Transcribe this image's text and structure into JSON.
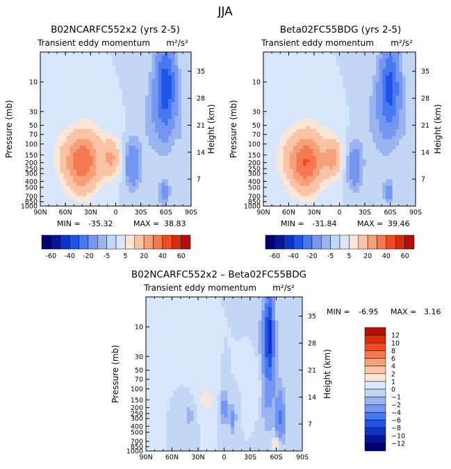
{
  "figure": {
    "title": "JJA"
  },
  "chart_data": [
    {
      "type": "heatmap",
      "title": "B02NCARFC552x2 (yrs 2-5)",
      "subtitle": "Transient eddy momentum",
      "units": "m²/s²",
      "xlabel": "",
      "ylabel": "Pressure (mb)",
      "ylabel_right": "Height (km)",
      "x_ticks": [
        "90N",
        "60N",
        "30N",
        "0",
        "30S",
        "60S",
        "90S"
      ],
      "y_ticks": [
        "10",
        "30",
        "50",
        "70",
        "100",
        "150",
        "200",
        "250",
        "300",
        "400",
        "500",
        "700",
        "850",
        "1000"
      ],
      "y_ticks_right": [
        "35",
        "28",
        "21",
        "14",
        "7"
      ],
      "y_scale": "log",
      "stats": {
        "min_label": "MIN =",
        "min_value": "-35.32",
        "max_label": "MAX =",
        "max_value": "38.83"
      },
      "blobs": [
        {
          "lat": 40,
          "p": 200,
          "w": 20,
          "h": 0.45,
          "v": 38.8
        },
        {
          "lat": 5,
          "p": 170,
          "w": 10,
          "h": 0.28,
          "v": 20
        },
        {
          "lat": -20,
          "p": 220,
          "w": 9,
          "h": 0.38,
          "v": -20
        },
        {
          "lat": -58,
          "p": 600,
          "w": 6,
          "h": 0.18,
          "v": -18
        },
        {
          "lat": -60,
          "p": 12,
          "w": 12,
          "h": 0.7,
          "v": -35.3
        },
        {
          "lat": -45,
          "p": 40,
          "w": 20,
          "h": 0.8,
          "v": -6
        },
        {
          "lat": 68,
          "p": 150,
          "w": 12,
          "h": 0.4,
          "v": 4
        },
        {
          "lat": 25,
          "p": 80,
          "w": 30,
          "h": 0.5,
          "v": 3
        },
        {
          "lat": -80,
          "p": 80,
          "w": 8,
          "h": 0.6,
          "v": -4
        }
      ]
    },
    {
      "type": "heatmap",
      "title": "Beta02FC55BDG (yrs 2-5)",
      "subtitle": "Transient eddy momentum",
      "units": "m²/s²",
      "xlabel": "",
      "ylabel": "Pressure (mb)",
      "ylabel_right": "Height (km)",
      "x_ticks": [
        "90N",
        "60N",
        "30N",
        "0",
        "30S",
        "60S",
        "90S"
      ],
      "y_ticks": [
        "10",
        "30",
        "50",
        "70",
        "100",
        "150",
        "200",
        "250",
        "300",
        "400",
        "500",
        "700",
        "850",
        "1000"
      ],
      "y_ticks_right": [
        "35",
        "28",
        "21",
        "14",
        "7"
      ],
      "y_scale": "log",
      "stats": {
        "min_label": "MIN =",
        "min_value": "-31.84",
        "max_label": "MAX =",
        "max_value": "39.46"
      },
      "blobs": [
        {
          "lat": 40,
          "p": 200,
          "w": 20,
          "h": 0.45,
          "v": 39.5
        },
        {
          "lat": 8,
          "p": 170,
          "w": 10,
          "h": 0.28,
          "v": 22
        },
        {
          "lat": -18,
          "p": 230,
          "w": 9,
          "h": 0.38,
          "v": -18
        },
        {
          "lat": -58,
          "p": 600,
          "w": 6,
          "h": 0.18,
          "v": -15
        },
        {
          "lat": -60,
          "p": 12,
          "w": 12,
          "h": 0.7,
          "v": -31.8
        },
        {
          "lat": -45,
          "p": 40,
          "w": 20,
          "h": 0.8,
          "v": -6
        },
        {
          "lat": 68,
          "p": 150,
          "w": 12,
          "h": 0.4,
          "v": 4
        },
        {
          "lat": 25,
          "p": 80,
          "w": 30,
          "h": 0.5,
          "v": 3
        },
        {
          "lat": -80,
          "p": 80,
          "w": 8,
          "h": 0.6,
          "v": -4
        }
      ]
    },
    {
      "type": "heatmap",
      "title": "B02NCARFC552x2 – Beta02FC55BDG",
      "subtitle": "Transient eddy momentum",
      "units": "m²/s²",
      "xlabel": "",
      "ylabel": "Pressure (mb)",
      "ylabel_right": "Height (km)",
      "x_ticks": [
        "90N",
        "60N",
        "30N",
        "0",
        "30S",
        "60S",
        "90S"
      ],
      "y_ticks": [
        "10",
        "30",
        "50",
        "70",
        "100",
        "150",
        "200",
        "250",
        "300",
        "400",
        "500",
        "700",
        "850",
        "1000"
      ],
      "y_ticks_right": [
        "35",
        "28",
        "21",
        "14",
        "7"
      ],
      "y_scale": "log",
      "stats": {
        "min_label": "MIN =",
        "min_value": "-6.95",
        "max_label": "MAX =",
        "max_value": "3.16"
      },
      "blobs": [
        {
          "lat": -52,
          "p": 12,
          "w": 5,
          "h": 0.6,
          "v": -6.9
        },
        {
          "lat": -50,
          "p": 40,
          "w": 10,
          "h": 1.0,
          "v": -3.5
        },
        {
          "lat": -65,
          "p": 300,
          "w": 5,
          "h": 0.5,
          "v": -4
        },
        {
          "lat": 0,
          "p": 200,
          "w": 5,
          "h": 0.3,
          "v": -3
        },
        {
          "lat": -10,
          "p": 300,
          "w": 4,
          "h": 0.25,
          "v": -2.5
        },
        {
          "lat": 40,
          "p": 250,
          "w": 8,
          "h": 0.25,
          "v": -1.5
        },
        {
          "lat": -60,
          "p": 780,
          "w": 5,
          "h": 0.1,
          "v": 3.16
        },
        {
          "lat": 20,
          "p": 150,
          "w": 15,
          "h": 0.3,
          "v": 1.2
        },
        {
          "lat": -40,
          "p": 80,
          "w": 8,
          "h": 0.5,
          "v": 1.5
        }
      ]
    }
  ],
  "colorbars": [
    {
      "orientation": "horizontal",
      "levels": [
        -60,
        -50,
        -40,
        -30,
        -20,
        -10,
        -5,
        0,
        5,
        10,
        20,
        30,
        40,
        50,
        60
      ],
      "labels": [
        "-60",
        "-40",
        "-20",
        "-5",
        "5",
        "20",
        "40",
        "60"
      ]
    },
    {
      "orientation": "vertical",
      "levels": [
        -12,
        -10,
        -8,
        -6,
        -4,
        -2,
        -1,
        0,
        1,
        2,
        4,
        6,
        8,
        10,
        12
      ],
      "labels": [
        "12",
        "10",
        "8",
        "6",
        "4",
        "2",
        "1",
        "0",
        "−1",
        "−2",
        "−4",
        "−6",
        "−8",
        "−10",
        "−12"
      ]
    }
  ],
  "palette": [
    "#00006e",
    "#0a149b",
    "#0f32c8",
    "#1e55e6",
    "#4678f0",
    "#7396f0",
    "#9bb4f0",
    "#c3d7f5",
    "#d7e6fa",
    "#fae6d7",
    "#fac3a5",
    "#f5a078",
    "#f57850",
    "#f04b23",
    "#d72d0f",
    "#b40f0a",
    "#820505"
  ]
}
